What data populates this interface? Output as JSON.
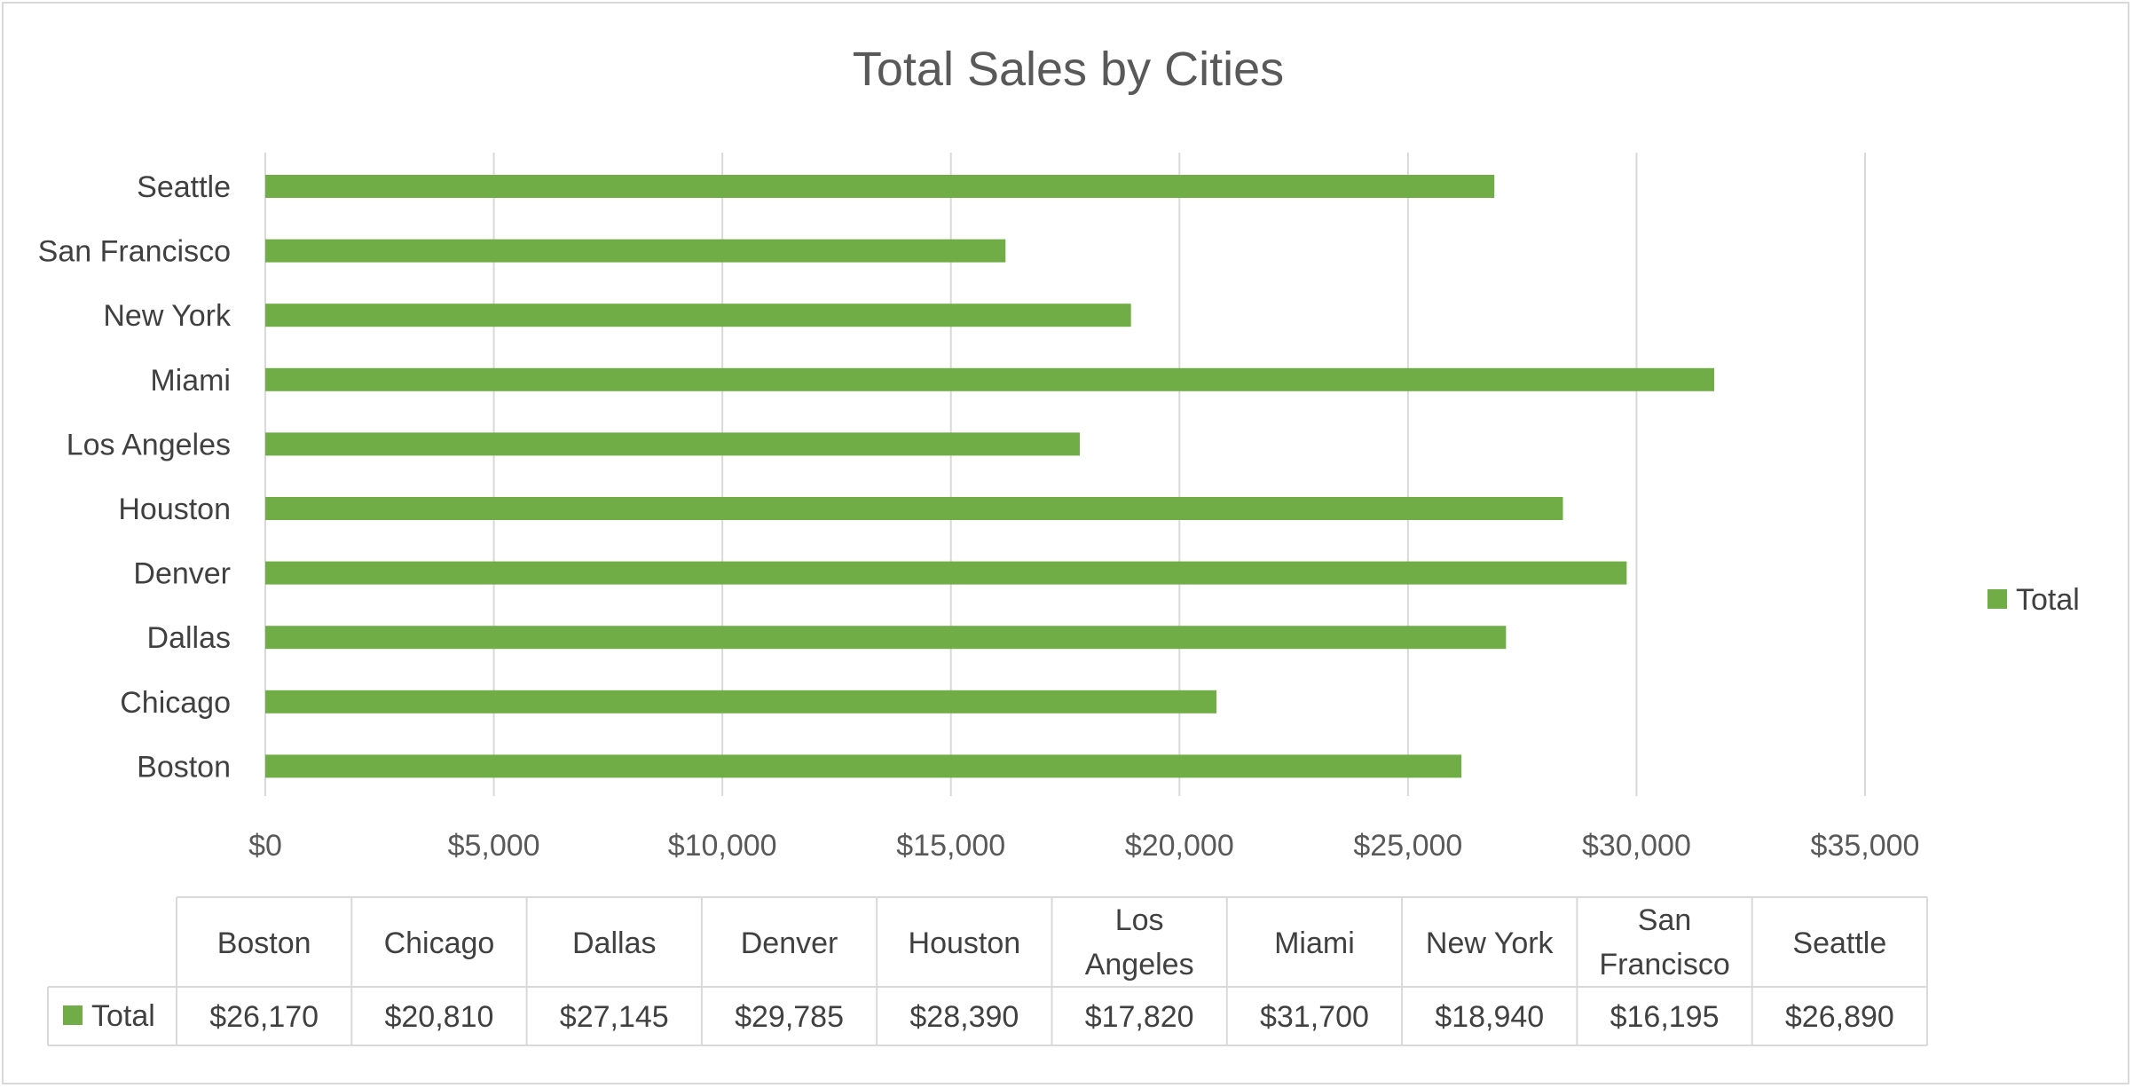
{
  "chart_data": {
    "type": "bar",
    "orientation": "horizontal",
    "title": "Total Sales by Cities",
    "categories": [
      "Boston",
      "Chicago",
      "Dallas",
      "Denver",
      "Houston",
      "Los Angeles",
      "Miami",
      "New York",
      "San Francisco",
      "Seattle"
    ],
    "series": [
      {
        "name": "Total",
        "color": "#70ad47",
        "values": [
          26170,
          20810,
          27145,
          29785,
          28390,
          17820,
          31700,
          18940,
          16195,
          26890
        ],
        "formatted_values": [
          "$26,170",
          "$20,810",
          "$27,145",
          "$29,785",
          "$28,390",
          "$17,820",
          "$31,700",
          "$18,940",
          "$16,195",
          "$26,890"
        ]
      }
    ],
    "xlim": [
      0,
      35000
    ],
    "x_ticks": [
      0,
      5000,
      10000,
      15000,
      20000,
      25000,
      30000,
      35000
    ],
    "x_tick_labels": [
      "$0",
      "$5,000",
      "$10,000",
      "$15,000",
      "$20,000",
      "$25,000",
      "$30,000",
      "$35,000"
    ],
    "grid": true,
    "legend": {
      "placement": "right",
      "entries": [
        "Total"
      ]
    },
    "data_table": {
      "header_labels": [
        [
          "Boston"
        ],
        [
          "Chicago"
        ],
        [
          "Dallas"
        ],
        [
          "Denver"
        ],
        [
          "Houston"
        ],
        [
          "Los",
          "Angeles"
        ],
        [
          "Miami"
        ],
        [
          "New York"
        ],
        [
          "San",
          "Francisco"
        ],
        [
          "Seattle"
        ]
      ],
      "row_label": "Total"
    },
    "xlabel": "",
    "ylabel": ""
  }
}
